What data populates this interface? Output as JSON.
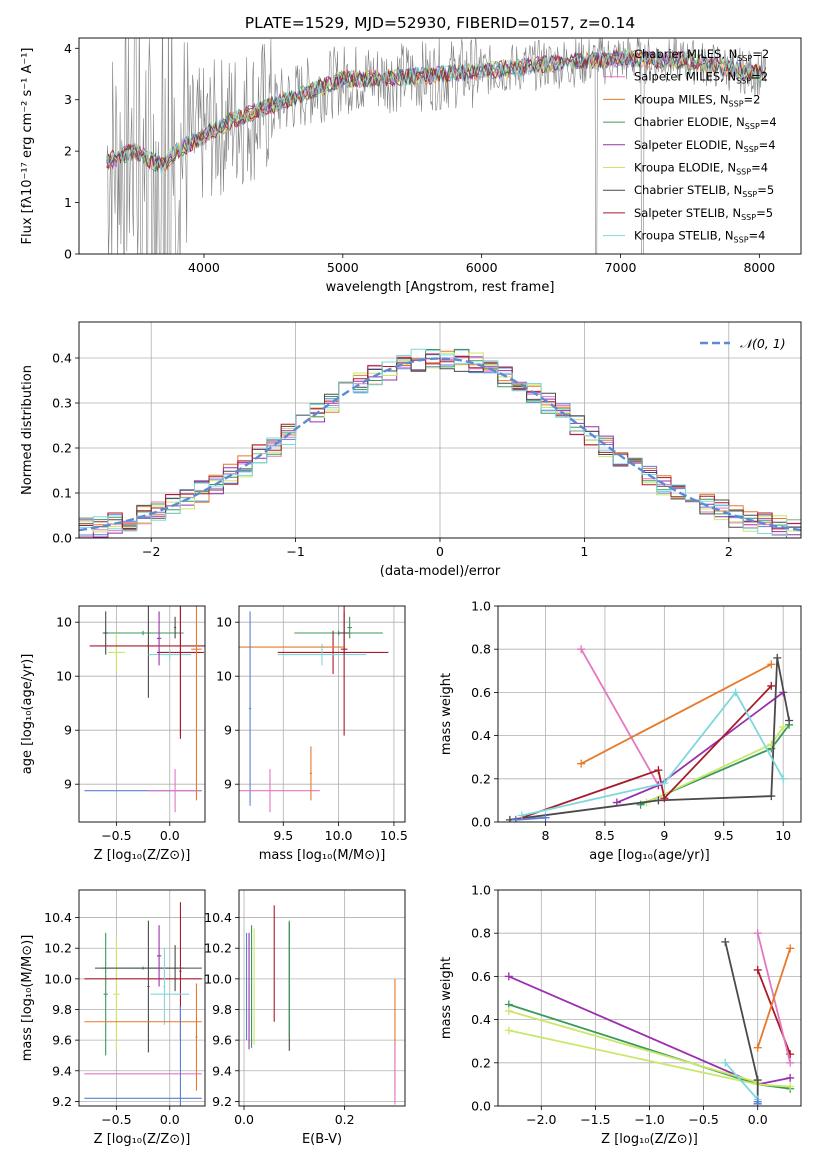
{
  "title": "PLATE=1529, MJD=52930, FIBERID=0157, z=0.14",
  "colors": {
    "chabrier_miles": "#5b7fd8",
    "salpeter_miles": "#e377c2",
    "kroupa_miles": "#e8792a",
    "chabrier_elodie": "#3a9a5a",
    "salpeter_elodie": "#9b2fae",
    "kroupa_elodie": "#c9e86a",
    "chabrier_stelib": "#4a4a4a",
    "salpeter_stelib": "#a81b2a",
    "kroupa_stelib": "#7fd8dc",
    "observed": "#808080",
    "normal_curve": "#5b8bd6"
  },
  "chart_data": [
    {
      "id": "spectrum",
      "type": "line",
      "xlabel": "wavelength [Angstrom, rest frame]",
      "ylabel": "Flux [fλ10⁻¹⁷ erg cm⁻² s⁻¹ A⁻¹]",
      "xlim": [
        3100,
        8300
      ],
      "ylim": [
        0,
        4.2
      ],
      "xticks": [
        4000,
        5000,
        6000,
        7000,
        8000
      ],
      "yticks": [
        0,
        1,
        2,
        3,
        4
      ],
      "legend_position": "right",
      "legend": [
        {
          "label": "Chabrier MILES, N",
          "sub": "SSP",
          "eq": "=2",
          "color": "chabrier_miles"
        },
        {
          "label": "Salpeter MILES, N",
          "sub": "SSP",
          "eq": "=2",
          "color": "salpeter_miles"
        },
        {
          "label": "Kroupa MILES, N",
          "sub": "SSP",
          "eq": "=2",
          "color": "kroupa_miles"
        },
        {
          "label": "Chabrier ELODIE, N",
          "sub": "SSP",
          "eq": "=4",
          "color": "chabrier_elodie"
        },
        {
          "label": "Salpeter ELODIE, N",
          "sub": "SSP",
          "eq": "=4",
          "color": "salpeter_elodie"
        },
        {
          "label": "Kroupa ELODIE, N",
          "sub": "SSP",
          "eq": "=4",
          "color": "kroupa_elodie"
        },
        {
          "label": "Chabrier STELIB, N",
          "sub": "SSP",
          "eq": "=5",
          "color": "chabrier_stelib"
        },
        {
          "label": "Salpeter STELIB, N",
          "sub": "SSP",
          "eq": "=5",
          "color": "salpeter_stelib"
        },
        {
          "label": "Kroupa STELIB, N",
          "sub": "SSP",
          "eq": "=4",
          "color": "kroupa_stelib"
        }
      ],
      "continuum": [
        [
          3300,
          1.8
        ],
        [
          3500,
          2.0
        ],
        [
          3700,
          1.7
        ],
        [
          3800,
          2.0
        ],
        [
          4000,
          2.3
        ],
        [
          4200,
          2.6
        ],
        [
          4500,
          2.9
        ],
        [
          5000,
          3.4
        ],
        [
          5500,
          3.45
        ],
        [
          6000,
          3.55
        ],
        [
          6500,
          3.7
        ],
        [
          7000,
          3.8
        ],
        [
          7500,
          3.75
        ],
        [
          8000,
          3.5
        ]
      ]
    },
    {
      "id": "residuals",
      "type": "line",
      "xlabel": "(data-model)/error",
      "ylabel": "Normed distribution",
      "xlim": [
        -2.5,
        2.5
      ],
      "ylim": [
        0,
        0.48
      ],
      "xticks": [
        -2,
        -1,
        0,
        1,
        2
      ],
      "yticks": [
        0.0,
        0.1,
        0.2,
        0.3,
        0.4
      ],
      "xtick_labels": [
        "−2",
        "−1",
        "0",
        "1",
        "2"
      ],
      "grid": true,
      "legend_position": "top-right",
      "legend_label": "𝒩(0, 1)",
      "series_colors": [
        "chabrier_miles",
        "salpeter_miles",
        "kroupa_miles",
        "chabrier_elodie",
        "salpeter_elodie",
        "kroupa_elodie",
        "chabrier_stelib",
        "salpeter_stelib",
        "kroupa_stelib"
      ]
    },
    {
      "id": "age_vs_z",
      "type": "scatter",
      "xlabel": "Z [log₁₀(Z/Z⊙)]",
      "ylabel": "age  [log₁₀(age/yr)]",
      "xlim": [
        -0.85,
        0.33
      ],
      "ylim": [
        8.15,
        10.15
      ],
      "xticks": [
        -0.5,
        0.0
      ],
      "yticks": [
        8.5,
        9.0,
        9.5,
        10.0
      ],
      "xtick_labels": [
        "−0.5",
        "0.0"
      ],
      "grid": true,
      "crosses": [
        {
          "x": -0.25,
          "y": 9.9,
          "dx": 0.38,
          "dy": 0.02,
          "color": "chabrier_elodie"
        },
        {
          "x": -0.5,
          "y": 9.72,
          "dx": 0.08,
          "dy": 0.18,
          "color": "kroupa_elodie"
        },
        {
          "x": -0.6,
          "y": 9.9,
          "dx": 0.02,
          "dy": 0.2,
          "color": "chabrier_stelib"
        },
        {
          "x": -0.2,
          "y": 9.75,
          "dx": 0.0,
          "dy": 0.45,
          "color": "chabrier_stelib"
        },
        {
          "x": -0.2,
          "y": 9.78,
          "dx": 0.55,
          "dy": 0.01,
          "color": "salpeter_stelib"
        },
        {
          "x": 0.1,
          "y": 9.72,
          "dx": 0.22,
          "dy": 0.8,
          "color": "salpeter_stelib"
        },
        {
          "x": 0.0,
          "y": 9.7,
          "dx": 0.2,
          "dy": 0.05,
          "color": "kroupa_stelib"
        },
        {
          "x": -0.1,
          "y": 9.85,
          "dx": 0.02,
          "dy": 0.25,
          "color": "salpeter_elodie"
        },
        {
          "x": 0.05,
          "y": 9.95,
          "dx": 0.01,
          "dy": 0.1,
          "color": "chabrier_stelib"
        },
        {
          "x": 0.25,
          "y": 9.75,
          "dx": 0.05,
          "dy": 1.4,
          "color": "kroupa_miles"
        },
        {
          "x": -0.25,
          "y": 8.44,
          "dx": 0.55,
          "dy": 0.0,
          "color": "chabrier_miles"
        },
        {
          "x": 0.05,
          "y": 8.44,
          "dx": 0.25,
          "dy": 0.2,
          "color": "salpeter_miles"
        },
        {
          "x": 0.1,
          "y": 9.7,
          "dx": 0.0,
          "dy": 0.75,
          "color": "salpeter_stelib"
        }
      ]
    },
    {
      "id": "age_vs_mass",
      "type": "scatter",
      "xlabel": "mass [log₁₀(M/M⊙)]",
      "ylabel": "",
      "xlim": [
        9.1,
        10.6
      ],
      "ylim": [
        8.15,
        10.15
      ],
      "xticks": [
        9.5,
        10.0,
        10.5
      ],
      "yticks": [
        8.5,
        9.0,
        9.5,
        10.0
      ],
      "xtick_labels": [
        "9.5",
        "10.0",
        "10.5"
      ],
      "grid": true,
      "crosses": [
        {
          "x": 10.0,
          "y": 9.9,
          "dx": 0.4,
          "dy": 0.02,
          "color": "chabrier_elodie"
        },
        {
          "x": 9.95,
          "y": 9.72,
          "dx": 0.5,
          "dy": 0.2,
          "color": "salpeter_stelib"
        },
        {
          "x": 10.05,
          "y": 9.9,
          "dx": 0.05,
          "dy": 0.2,
          "color": "chabrier_stelib"
        },
        {
          "x": 9.85,
          "y": 9.7,
          "dx": 0.4,
          "dy": 0.1,
          "color": "kroupa_stelib"
        },
        {
          "x": 10.05,
          "y": 9.75,
          "dx": 0.03,
          "dy": 0.8,
          "color": "salpeter_stelib"
        },
        {
          "x": 9.5,
          "y": 9.77,
          "dx": 0.55,
          "dy": 0.0,
          "color": "kroupa_miles"
        },
        {
          "x": 9.75,
          "y": 8.6,
          "dx": 0.01,
          "dy": 0.25,
          "color": "kroupa_miles"
        },
        {
          "x": 9.2,
          "y": 9.2,
          "dx": 0.01,
          "dy": 0.9,
          "color": "chabrier_miles"
        },
        {
          "x": 9.38,
          "y": 8.44,
          "dx": 0.45,
          "dy": 0.2,
          "color": "salpeter_miles"
        },
        {
          "x": 10.1,
          "y": 9.95,
          "dx": 0.02,
          "dy": 0.1,
          "color": "chabrier_elodie"
        }
      ]
    },
    {
      "id": "weight_vs_age",
      "type": "line",
      "xlabel": "age  [log₁₀(age/yr)]",
      "ylabel": "mass weight",
      "xlim": [
        7.6,
        10.15
      ],
      "ylim": [
        0,
        1.0
      ],
      "xticks": [
        8.0,
        8.5,
        9.0,
        9.5,
        10.0
      ],
      "yticks": [
        0.0,
        0.2,
        0.4,
        0.6,
        0.8,
        1.0
      ],
      "grid": true,
      "series": [
        {
          "color": "salpeter_miles",
          "x": [
            8.3,
            8.95
          ],
          "y": [
            0.8,
            0.17
          ]
        },
        {
          "color": "kroupa_miles",
          "x": [
            8.3,
            9.9
          ],
          "y": [
            0.27,
            0.73
          ]
        },
        {
          "color": "salpeter_elodie",
          "x": [
            8.6,
            8.95,
            10.0
          ],
          "y": [
            0.09,
            0.17,
            0.6
          ]
        },
        {
          "color": "chabrier_elodie",
          "x": [
            8.8,
            9.9,
            10.05
          ],
          "y": [
            0.08,
            0.34,
            0.45
          ]
        },
        {
          "color": "kroupa_elodie",
          "x": [
            8.85,
            9.9,
            10.0
          ],
          "y": [
            0.09,
            0.36,
            0.44
          ]
        },
        {
          "color": "chabrier_stelib",
          "x": [
            7.7,
            8.95,
            9.9,
            9.95,
            10.05
          ],
          "y": [
            0.01,
            0.1,
            0.12,
            0.76,
            0.47
          ]
        },
        {
          "color": "salpeter_stelib",
          "x": [
            7.75,
            8.95,
            9.0,
            9.9
          ],
          "y": [
            0.01,
            0.24,
            0.11,
            0.63
          ]
        },
        {
          "color": "kroupa_stelib",
          "x": [
            7.8,
            9.0,
            9.6,
            10.0
          ],
          "y": [
            0.03,
            0.18,
            0.6,
            0.2
          ]
        },
        {
          "color": "chabrier_miles",
          "x": [
            7.75,
            8.0
          ],
          "y": [
            0.01,
            0.02
          ]
        }
      ]
    },
    {
      "id": "mass_vs_z",
      "type": "scatter",
      "xlabel": "Z [log₁₀(Z/Z⊙)]",
      "ylabel": "mass [log₁₀(M/M⊙)]",
      "xlim": [
        -0.85,
        0.33
      ],
      "ylim": [
        9.17,
        10.58
      ],
      "xticks": [
        -0.5,
        0.0
      ],
      "yticks": [
        9.2,
        9.4,
        9.6,
        9.8,
        10.0,
        10.2,
        10.4
      ],
      "xtick_labels": [
        "−0.5",
        "0.0"
      ],
      "grid": true,
      "crosses": [
        {
          "x": -0.25,
          "y": 10.07,
          "dx": 0.38,
          "dy": 0.01,
          "color": "chabrier_elodie"
        },
        {
          "x": -0.6,
          "y": 9.9,
          "dx": 0.02,
          "dy": 0.4,
          "color": "chabrier_elodie"
        },
        {
          "x": -0.5,
          "y": 9.9,
          "dx": 0.03,
          "dy": 0.37,
          "color": "kroupa_elodie"
        },
        {
          "x": -0.2,
          "y": 9.95,
          "dx": 0.01,
          "dy": 0.43,
          "color": "chabrier_stelib"
        },
        {
          "x": -0.2,
          "y": 10.07,
          "dx": 0.5,
          "dy": 0.0,
          "color": "chabrier_stelib"
        },
        {
          "x": -0.25,
          "y": 10.0,
          "dx": 0.55,
          "dy": 0.0,
          "color": "salpeter_stelib"
        },
        {
          "x": 0.1,
          "y": 10.05,
          "dx": 0.01,
          "dy": 0.45,
          "color": "salpeter_stelib"
        },
        {
          "x": -0.1,
          "y": 10.15,
          "dx": 0.02,
          "dy": 0.2,
          "color": "salpeter_elodie"
        },
        {
          "x": 0.0,
          "y": 9.9,
          "dx": 0.18,
          "dy": 0.0,
          "color": "kroupa_stelib"
        },
        {
          "x": -0.05,
          "y": 9.95,
          "dx": 0.01,
          "dy": 0.25,
          "color": "kroupa_stelib"
        },
        {
          "x": -0.25,
          "y": 9.72,
          "dx": 0.55,
          "dy": 0.0,
          "color": "kroupa_miles"
        },
        {
          "x": 0.25,
          "y": 9.62,
          "dx": 0.01,
          "dy": 0.35,
          "color": "kroupa_miles"
        },
        {
          "x": -0.25,
          "y": 9.38,
          "dx": 0.55,
          "dy": 0.0,
          "color": "salpeter_miles"
        },
        {
          "x": -0.25,
          "y": 9.22,
          "dx": 0.55,
          "dy": 0.0,
          "color": "chabrier_miles"
        },
        {
          "x": 0.1,
          "y": 9.22,
          "dx": 0.01,
          "dy": 0.6,
          "color": "chabrier_miles"
        },
        {
          "x": 0.05,
          "y": 10.07,
          "dx": 0.01,
          "dy": 0.15,
          "color": "chabrier_stelib"
        }
      ]
    },
    {
      "id": "mass_vs_ebv",
      "type": "scatter",
      "xlabel": "E(B-V)",
      "ylabel": "",
      "xlim": [
        -0.01,
        0.32
      ],
      "ylim": [
        9.17,
        10.58
      ],
      "xticks": [
        0.0,
        0.2
      ],
      "yticks": [
        9.2,
        9.4,
        9.6,
        9.8,
        10.0,
        10.2,
        10.4
      ],
      "xtick_labels": [
        "0.0",
        "0.2"
      ],
      "grid": true,
      "crosses": [
        {
          "x": 0.005,
          "y": 9.95,
          "dx": 0.0,
          "dy": 0.35,
          "color": "chabrier_miles"
        },
        {
          "x": 0.01,
          "y": 9.92,
          "dx": 0.0,
          "dy": 0.38,
          "color": "salpeter_elodie"
        },
        {
          "x": 0.015,
          "y": 9.95,
          "dx": 0.0,
          "dy": 0.4,
          "color": "chabrier_elodie"
        },
        {
          "x": 0.02,
          "y": 9.95,
          "dx": 0.0,
          "dy": 0.38,
          "color": "kroupa_elodie"
        },
        {
          "x": 0.06,
          "y": 10.1,
          "dx": 0.0,
          "dy": 0.38,
          "color": "salpeter_stelib"
        },
        {
          "x": 0.09,
          "y": 9.95,
          "dx": 0.0,
          "dy": 0.42,
          "color": "chabrier_stelib"
        },
        {
          "x": 0.09,
          "y": 10.0,
          "dx": 0.0,
          "dy": 0.38,
          "color": "chabrier_elodie"
        },
        {
          "x": 0.3,
          "y": 9.62,
          "dx": 0.0,
          "dy": 0.38,
          "color": "kroupa_miles"
        },
        {
          "x": 0.3,
          "y": 9.38,
          "dx": 0.0,
          "dy": 0.2,
          "color": "salpeter_miles"
        }
      ]
    },
    {
      "id": "weight_vs_z",
      "type": "line",
      "xlabel": "Z [log₁₀(Z/Z⊙)]",
      "ylabel": "mass weight",
      "xlim": [
        -2.4,
        0.4
      ],
      "ylim": [
        0,
        1.0
      ],
      "xticks": [
        -2.0,
        -1.5,
        -1.0,
        -0.5,
        0.0
      ],
      "xtick_labels": [
        "−2.0",
        "−1.5",
        "−1.0",
        "−0.5",
        "0.0"
      ],
      "yticks": [
        0.0,
        0.2,
        0.4,
        0.6,
        0.8,
        1.0
      ],
      "grid": true,
      "series": [
        {
          "color": "salpeter_elodie",
          "x": [
            -2.3,
            0.0,
            0.3
          ],
          "y": [
            0.6,
            0.1,
            0.13
          ]
        },
        {
          "color": "chabrier_elodie",
          "x": [
            -2.3,
            0.0,
            0.3
          ],
          "y": [
            0.47,
            0.1,
            0.08
          ]
        },
        {
          "color": "kroupa_elodie",
          "x": [
            -2.3,
            0.0,
            0.3
          ],
          "y": [
            0.35,
            0.1,
            0.09
          ]
        },
        {
          "color": "kroupa_elodie",
          "x": [
            -2.3,
            0.0
          ],
          "y": [
            0.44,
            0.11
          ]
        },
        {
          "color": "chabrier_stelib",
          "x": [
            -0.3,
            0.0,
            0.0
          ],
          "y": [
            0.76,
            0.12,
            0.01
          ]
        },
        {
          "color": "salpeter_stelib",
          "x": [
            0.0,
            0.3
          ],
          "y": [
            0.63,
            0.24
          ]
        },
        {
          "color": "salpeter_miles",
          "x": [
            0.0,
            0.3
          ],
          "y": [
            0.8,
            0.2
          ]
        },
        {
          "color": "kroupa_miles",
          "x": [
            0.0,
            0.3
          ],
          "y": [
            0.27,
            0.73
          ]
        },
        {
          "color": "kroupa_stelib",
          "x": [
            -0.3,
            0.0
          ],
          "y": [
            0.2,
            0.03
          ]
        },
        {
          "color": "chabrier_miles",
          "x": [
            0.0,
            0.0
          ],
          "y": [
            0.02,
            0.01
          ]
        }
      ]
    }
  ]
}
